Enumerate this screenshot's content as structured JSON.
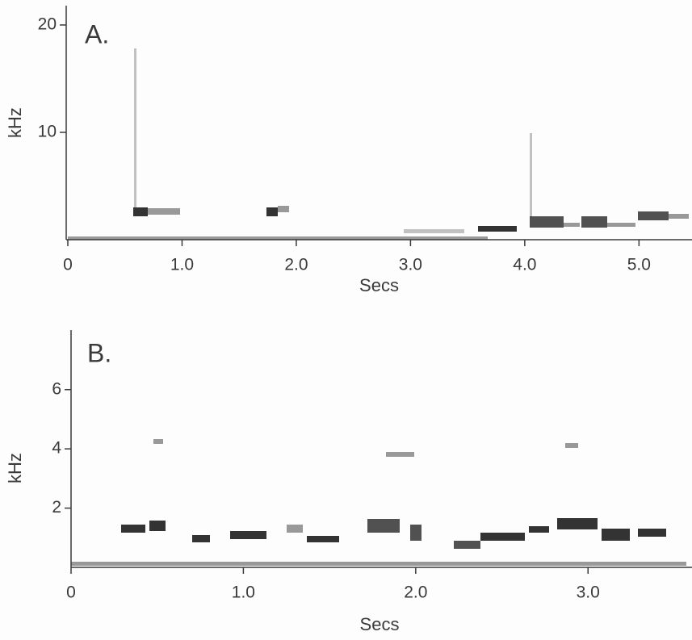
{
  "chart_data": [
    {
      "type": "spectrogram",
      "panel_label": "A.",
      "xlabel": "Secs",
      "ylabel": "kHz",
      "xlim": [
        0,
        5.45
      ],
      "ylim": [
        0,
        21.5
      ],
      "xticks": [
        0,
        {
          "value": 1,
          "label": "1.0"
        },
        {
          "value": 2,
          "label": "2.0"
        },
        {
          "value": 3,
          "label": "3.0"
        },
        {
          "value": 4,
          "label": "4.0"
        },
        {
          "value": 5,
          "label": "5.0"
        }
      ],
      "yticks": [
        10,
        20
      ]
    },
    {
      "type": "spectrogram",
      "panel_label": "B.",
      "xlabel": "Secs",
      "ylabel": "kHz",
      "xlim": [
        0,
        3.58
      ],
      "ylim": [
        0,
        7.9
      ],
      "xticks": [
        0,
        {
          "value": 1,
          "label": "1.0"
        },
        {
          "value": 2,
          "label": "2.0"
        },
        {
          "value": 3,
          "label": "3.0"
        }
      ],
      "yticks": [
        2,
        4,
        6
      ]
    }
  ]
}
